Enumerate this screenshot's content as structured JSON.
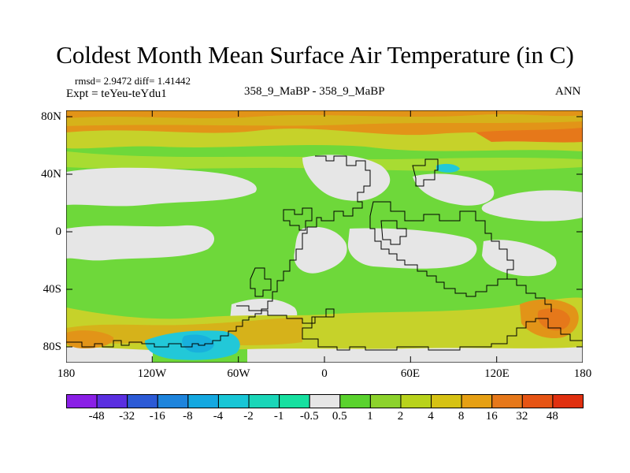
{
  "title": "Coldest Month Mean Surface Air Temperature (in C)",
  "stats": "rmsd= 2.9472  diff= 1.41442",
  "experiment": "Expt = teYeu-teYdu1",
  "comparison": "358_9_MaBP - 358_9_MaBP",
  "season": "ANN",
  "x_ticks": [
    "180",
    "120W",
    "60W",
    "0",
    "60E",
    "120E",
    "180"
  ],
  "y_ticks": [
    "80N",
    "40N",
    "0",
    "40S",
    "80S"
  ],
  "colorbar": {
    "labels": [
      "-48",
      "-32",
      "-16",
      "-8",
      "-4",
      "-2",
      "-1",
      "-0.5",
      "0.5",
      "1",
      "2",
      "4",
      "8",
      "16",
      "32",
      "48"
    ],
    "colors": [
      "#8a1fe6",
      "#5a2fe0",
      "#2c5ad6",
      "#1e84dc",
      "#14a8e0",
      "#18c6d6",
      "#1ad6b8",
      "#17e0a0",
      "#e6e6e6",
      "#5ad22e",
      "#8cd22c",
      "#b8d21c",
      "#d6c214",
      "#e6a014",
      "#e6781a",
      "#e65414",
      "#e03010"
    ]
  },
  "colors": {
    "land_outline": "#000000",
    "near_zero": "#e6e6e6",
    "green": "#6ed83a",
    "lightgreen": "#a8dc32",
    "yellow": "#c6d22a",
    "gold": "#d6b21a",
    "orange": "#e29418",
    "cyan": "#22c8d8"
  }
}
